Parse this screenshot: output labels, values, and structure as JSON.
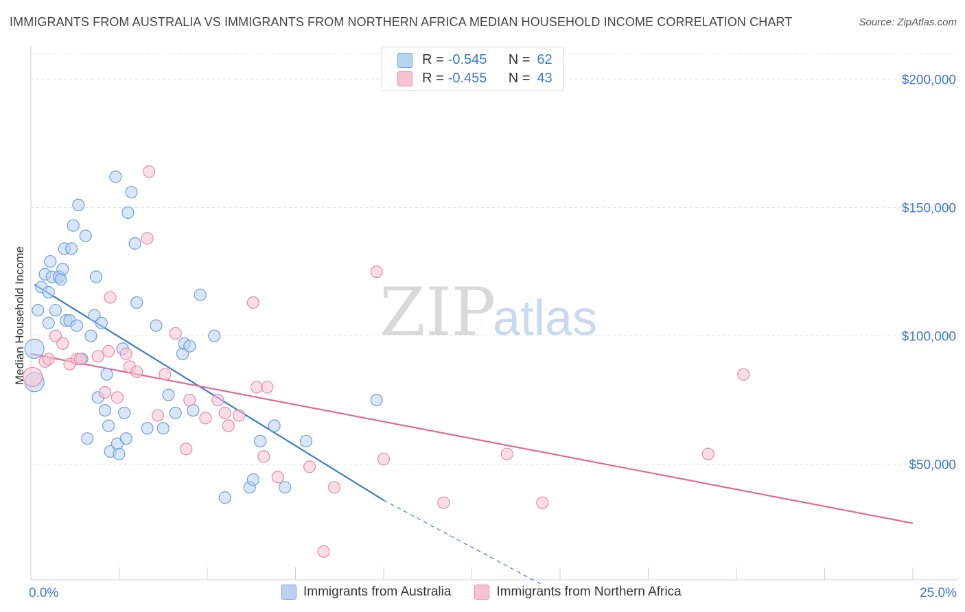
{
  "title": "IMMIGRANTS FROM AUSTRALIA VS IMMIGRANTS FROM NORTHERN AFRICA MEDIAN HOUSEHOLD INCOME CORRELATION CHART",
  "source": "Source: ZipAtlas.com",
  "watermark": {
    "zip": "ZIP",
    "atlas": "atlas"
  },
  "colors": {
    "australia_fill": "#b8d2f2",
    "australia_stroke": "#6f9fd8",
    "australia_line": "#3a78d4",
    "nafrica_fill": "#f7c2d2",
    "nafrica_stroke": "#e58aa8",
    "nafrica_line": "#e06a94",
    "tick_label": "#3a78d4",
    "grid": "#e2e2e2"
  },
  "legend_top": {
    "rows": [
      {
        "r_label": "R =",
        "r_value": "-0.545",
        "n_label": "N =",
        "n_value": "62"
      },
      {
        "r_label": "R =",
        "r_value": "-0.455",
        "n_label": "N =",
        "n_value": "43"
      }
    ]
  },
  "legend_bottom": {
    "items": [
      {
        "label": "Immigrants from Australia"
      },
      {
        "label": "Immigrants from Northern Africa"
      }
    ]
  },
  "chart_data": {
    "type": "scatter",
    "title": "IMMIGRANTS FROM AUSTRALIA VS IMMIGRANTS FROM NORTHERN AFRICA MEDIAN HOUSEHOLD INCOME CORRELATION CHART",
    "xlabel": "",
    "ylabel": "Median Household Income",
    "xlim": [
      0,
      25
    ],
    "ylim": [
      5000,
      210000
    ],
    "x_tick_labels": [
      "0.0%",
      "25.0%"
    ],
    "y_ticks": [
      50000,
      100000,
      150000,
      200000
    ],
    "y_tick_labels": [
      "$50,000",
      "$100,000",
      "$150,000",
      "$200,000"
    ],
    "grid": true,
    "legend": "bottom",
    "series": [
      {
        "name": "Immigrants from Australia",
        "points": [
          [
            0.1,
            82000
          ],
          [
            0.1,
            95000
          ],
          [
            0.2,
            110000
          ],
          [
            0.3,
            119000
          ],
          [
            0.4,
            124000
          ],
          [
            0.5,
            117000
          ],
          [
            0.5,
            105000
          ],
          [
            0.55,
            129000
          ],
          [
            0.6,
            123000
          ],
          [
            0.7,
            110000
          ],
          [
            0.8,
            123000
          ],
          [
            0.8,
            123000
          ],
          [
            0.85,
            122000
          ],
          [
            0.9,
            126000
          ],
          [
            0.95,
            134000
          ],
          [
            1.0,
            106000
          ],
          [
            1.1,
            106000
          ],
          [
            1.15,
            134000
          ],
          [
            1.2,
            143000
          ],
          [
            1.3,
            104000
          ],
          [
            1.35,
            151000
          ],
          [
            1.45,
            91000
          ],
          [
            1.55,
            139000
          ],
          [
            1.6,
            60000
          ],
          [
            1.7,
            100000
          ],
          [
            1.8,
            108000
          ],
          [
            1.85,
            123000
          ],
          [
            1.9,
            76000
          ],
          [
            2.0,
            105000
          ],
          [
            2.1,
            71000
          ],
          [
            2.15,
            85000
          ],
          [
            2.2,
            65000
          ],
          [
            2.25,
            55000
          ],
          [
            2.4,
            162000
          ],
          [
            2.45,
            58000
          ],
          [
            2.5,
            54000
          ],
          [
            2.6,
            95000
          ],
          [
            2.65,
            70000
          ],
          [
            2.7,
            60000
          ],
          [
            2.75,
            148000
          ],
          [
            2.85,
            156000
          ],
          [
            2.95,
            136000
          ],
          [
            3.0,
            113000
          ],
          [
            3.3,
            64000
          ],
          [
            3.55,
            104000
          ],
          [
            3.75,
            64000
          ],
          [
            3.9,
            77000
          ],
          [
            4.1,
            70000
          ],
          [
            4.3,
            93000
          ],
          [
            4.35,
            97000
          ],
          [
            4.5,
            96000
          ],
          [
            4.6,
            71000
          ],
          [
            4.8,
            116000
          ],
          [
            5.2,
            100000
          ],
          [
            5.5,
            37000
          ],
          [
            6.2,
            41000
          ],
          [
            6.3,
            44000
          ],
          [
            6.5,
            59000
          ],
          [
            6.9,
            65000
          ],
          [
            7.2,
            41000
          ],
          [
            7.8,
            59000
          ],
          [
            9.8,
            75000
          ]
        ]
      },
      {
        "name": "Immigrants from Northern Africa",
        "points": [
          [
            0.05,
            84000
          ],
          [
            0.4,
            90000
          ],
          [
            0.5,
            91000
          ],
          [
            0.7,
            100000
          ],
          [
            0.9,
            97000
          ],
          [
            1.1,
            89000
          ],
          [
            1.3,
            91000
          ],
          [
            1.4,
            91000
          ],
          [
            1.9,
            92000
          ],
          [
            2.1,
            78000
          ],
          [
            2.2,
            94000
          ],
          [
            2.25,
            115000
          ],
          [
            2.45,
            76000
          ],
          [
            2.7,
            93000
          ],
          [
            2.8,
            88000
          ],
          [
            3.0,
            86000
          ],
          [
            3.3,
            138000
          ],
          [
            3.35,
            164000
          ],
          [
            3.6,
            69000
          ],
          [
            3.8,
            85000
          ],
          [
            4.1,
            101000
          ],
          [
            4.4,
            56000
          ],
          [
            4.5,
            75000
          ],
          [
            4.95,
            68000
          ],
          [
            5.3,
            75000
          ],
          [
            5.5,
            70000
          ],
          [
            5.6,
            65000
          ],
          [
            5.9,
            69000
          ],
          [
            6.3,
            113000
          ],
          [
            6.4,
            80000
          ],
          [
            6.6,
            53000
          ],
          [
            6.7,
            80000
          ],
          [
            7.0,
            45000
          ],
          [
            7.9,
            49000
          ],
          [
            8.3,
            16000
          ],
          [
            8.6,
            41000
          ],
          [
            9.8,
            125000
          ],
          [
            10.0,
            52000
          ],
          [
            11.7,
            35000
          ],
          [
            13.5,
            54000
          ],
          [
            14.5,
            35000
          ],
          [
            19.2,
            54000
          ],
          [
            20.2,
            85000
          ]
        ]
      }
    ],
    "trendlines": [
      {
        "series": "Immigrants from Australia",
        "x": [
          0.1,
          10.0
        ],
        "y": [
          120000,
          36000
        ],
        "dashed_extension_x": [
          10.0,
          14.5
        ],
        "dashed_extension_y": [
          36000,
          3000
        ]
      },
      {
        "series": "Immigrants from Northern Africa",
        "x": [
          0.0,
          25.0
        ],
        "y": [
          93000,
          27000
        ]
      }
    ]
  }
}
